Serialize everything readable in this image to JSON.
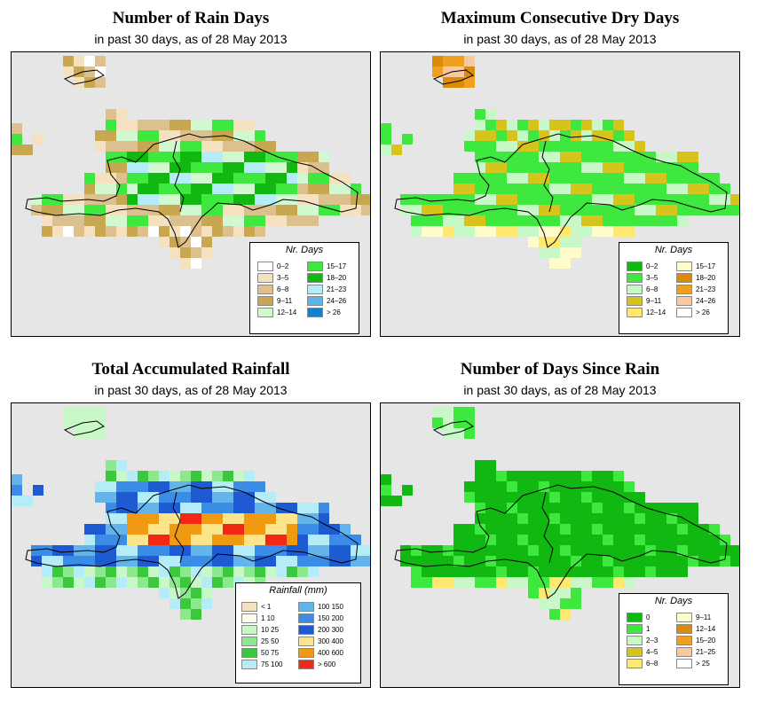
{
  "panels": [
    {
      "title": "Number of Rain Days",
      "subtitle": "in past 30 days, as of  28 May 2013",
      "legend": {
        "title": "Nr. Days",
        "items": [
          {
            "label": "0–2",
            "color": "#ffffff"
          },
          {
            "label": "3–5",
            "color": "#f5e1bf"
          },
          {
            "label": "6–8",
            "color": "#dcc08e"
          },
          {
            "label": "9–11",
            "color": "#c8a752"
          },
          {
            "label": "12–14",
            "color": "#d2f8d0"
          },
          {
            "label": "15–17",
            "color": "#3ee83e"
          },
          {
            "label": "18–20",
            "color": "#12b812"
          },
          {
            "label": "21–23",
            "color": "#b4ecf7"
          },
          {
            "label": "24–26",
            "color": "#5ab4e8"
          },
          {
            "label": "> 26",
            "color": "#1680c8"
          }
        ]
      }
    },
    {
      "title": "Maximum Consecutive Dry Days",
      "subtitle": "in past 30 days, as of  28 May 2013",
      "legend": {
        "title": "Nr. Days",
        "items": [
          {
            "label": "0–2",
            "color": "#12b812"
          },
          {
            "label": "3–5",
            "color": "#3ee83e"
          },
          {
            "label": "6–8",
            "color": "#c8f8c8"
          },
          {
            "label": "9–11",
            "color": "#d6c41c"
          },
          {
            "label": "12–14",
            "color": "#ffe870"
          },
          {
            "label": "15–17",
            "color": "#fffccc"
          },
          {
            "label": "18–20",
            "color": "#dc8a0a"
          },
          {
            "label": "21–23",
            "color": "#f0a020"
          },
          {
            "label": "24–26",
            "color": "#f8c8a0"
          },
          {
            "label": "> 26",
            "color": "#ffffff"
          }
        ]
      }
    },
    {
      "title": "Total Accumulated Rainfall",
      "subtitle": "in past 30 days, as of  28 May 2013",
      "legend": {
        "title": "Rainfall (mm)",
        "items": [
          {
            "label": "< 1",
            "color": "#f5e1bf"
          },
          {
            "label": "1  10",
            "color": "#fffcee"
          },
          {
            "label": "10  25",
            "color": "#c8f8c8"
          },
          {
            "label": "25  50",
            "color": "#8ce88c"
          },
          {
            "label": "50  75",
            "color": "#3cc83c"
          },
          {
            "label": "75  100",
            "color": "#b4ecf7"
          },
          {
            "label": "100  150",
            "color": "#64b4ec"
          },
          {
            "label": "150  200",
            "color": "#3a8ce6"
          },
          {
            "label": "200  300",
            "color": "#1e5ad2"
          },
          {
            "label": "300  400",
            "color": "#fce48a"
          },
          {
            "label": "400  600",
            "color": "#f09a14"
          },
          {
            "label": "> 600",
            "color": "#f02814"
          }
        ]
      }
    },
    {
      "title": "Number of Days Since Rain",
      "subtitle": "in past 30 days, as of  28 May 2013",
      "legend": {
        "title": "Nr. Days",
        "items": [
          {
            "label": "0",
            "color": "#12b812"
          },
          {
            "label": "1",
            "color": "#3ee83e"
          },
          {
            "label": "2–3",
            "color": "#c8f8c8"
          },
          {
            "label": "4–5",
            "color": "#d6c41c"
          },
          {
            "label": "6–8",
            "color": "#ffe870"
          },
          {
            "label": "9–11",
            "color": "#fffccc"
          },
          {
            "label": "12–14",
            "color": "#dc8a0a"
          },
          {
            "label": "15–20",
            "color": "#f0a020"
          },
          {
            "label": "21–25",
            "color": "#f8c8a0"
          },
          {
            "label": "> 25",
            "color": "#ffffff"
          }
        ]
      }
    }
  ]
}
